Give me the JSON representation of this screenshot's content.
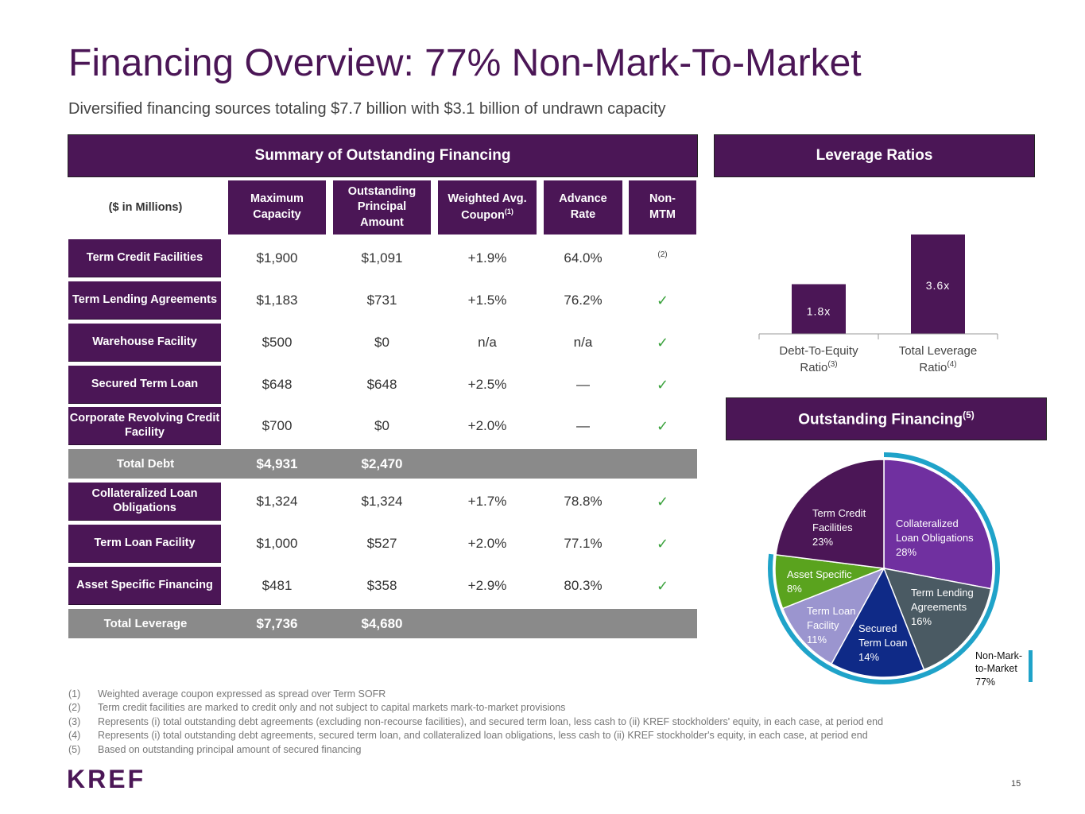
{
  "title": "Financing Overview: 77% Non-Mark-To-Market",
  "subtitle": "Diversified financing sources totaling $7.7 billion with $3.1 billion of undrawn capacity",
  "summary": {
    "banner": "Summary of Outstanding Financing",
    "unit_label": "($ in Millions)",
    "columns": [
      "Maximum Capacity",
      "Outstanding Principal Amount",
      "Weighted Avg. Coupon",
      "Advance Rate",
      "Non-MTM"
    ],
    "coupon_sup": "(1)",
    "rows": [
      {
        "label": "Term Credit Facilities",
        "max": "$1,900",
        "outstanding": "$1,091",
        "coupon": "+1.9%",
        "advance": "64.0%",
        "nonmtm": "(2)"
      },
      {
        "label": "Term Lending Agreements",
        "max": "$1,183",
        "outstanding": "$731",
        "coupon": "+1.5%",
        "advance": "76.2%",
        "nonmtm": "✓"
      },
      {
        "label": "Warehouse Facility",
        "max": "$500",
        "outstanding": "$0",
        "coupon": "n/a",
        "advance": "n/a",
        "nonmtm": "✓"
      },
      {
        "label": "Secured Term Loan",
        "max": "$648",
        "outstanding": "$648",
        "coupon": "+2.5%",
        "advance": "—",
        "nonmtm": "✓"
      },
      {
        "label": "Corporate Revolving Credit Facility",
        "max": "$700",
        "outstanding": "$0",
        "coupon": "+2.0%",
        "advance": "—",
        "nonmtm": "✓"
      }
    ],
    "total_debt": {
      "label": "Total Debt",
      "max": "$4,931",
      "outstanding": "$2,470"
    },
    "rows2": [
      {
        "label": "Collateralized Loan Obligations",
        "max": "$1,324",
        "outstanding": "$1,324",
        "coupon": "+1.7%",
        "advance": "78.8%",
        "nonmtm": "✓"
      },
      {
        "label": "Term Loan Facility",
        "max": "$1,000",
        "outstanding": "$527",
        "coupon": "+2.0%",
        "advance": "77.1%",
        "nonmtm": "✓"
      },
      {
        "label": "Asset Specific Financing",
        "max": "$481",
        "outstanding": "$358",
        "coupon": "+2.9%",
        "advance": "80.3%",
        "nonmtm": "✓"
      }
    ],
    "total_leverage": {
      "label": "Total Leverage",
      "max": "$7,736",
      "outstanding": "$4,680"
    }
  },
  "leverage": {
    "banner": "Leverage Ratios",
    "cat1_line1": "Debt-To-Equity",
    "cat1_line2": "Ratio",
    "cat1_sup": "(3)",
    "cat2_line1": "Total Leverage",
    "cat2_line2": "Ratio",
    "cat2_sup": "(4)"
  },
  "outstanding": {
    "banner": "Outstanding Financing",
    "banner_sup": "(5)",
    "nonmtm_line1": "Non-Mark-",
    "nonmtm_line2": "to-Market",
    "nonmtm_line3": "77%"
  },
  "chart_data": [
    {
      "type": "bar",
      "categories": [
        "Debt-To-Equity Ratio(3)",
        "Total Leverage Ratio(4)"
      ],
      "values": [
        1.8,
        3.6
      ],
      "value_labels": [
        "1.8x",
        "3.6x"
      ],
      "ylim": [
        0,
        3.6
      ],
      "colors": [
        "#4b1656",
        "#4b1656"
      ]
    },
    {
      "type": "pie",
      "slices": [
        {
          "name": "Collateralized Loan Obligations",
          "value": 28,
          "label_lines": [
            "Collateralized",
            "Loan Obligations",
            "28%"
          ],
          "color": "#7030a0"
        },
        {
          "name": "Term Lending Agreements",
          "value": 16,
          "label_lines": [
            "Term Lending",
            "Agreements",
            "16%"
          ],
          "color": "#4a5a63"
        },
        {
          "name": "Secured Term Loan",
          "value": 14,
          "label_lines": [
            "Secured",
            "Term Loan",
            "14%"
          ],
          "color": "#0f2a87"
        },
        {
          "name": "Term Loan Facility",
          "value": 11,
          "label_lines": [
            "Term Loan",
            "Facility",
            "11%"
          ],
          "color": "#9b95cf"
        },
        {
          "name": "Asset Specific",
          "value": 8,
          "label_lines": [
            "Asset Specific",
            "8%"
          ],
          "color": "#5aa31e"
        },
        {
          "name": "Term Credit Facilities",
          "value": 23,
          "label_lines": [
            "Term Credit",
            "Facilities",
            "23%"
          ],
          "color": "#4b1656"
        }
      ]
    }
  ],
  "footnotes": [
    {
      "num": "(1)",
      "text": "Weighted average coupon expressed as spread over Term SOFR"
    },
    {
      "num": "(2)",
      "text": "Term credit facilities are marked to credit only and not subject to capital markets mark-to-market provisions"
    },
    {
      "num": "(3)",
      "text": "Represents (i) total outstanding debt agreements (excluding non-recourse facilities), and secured term loan, less cash to (ii) KREF stockholders' equity, in each case, at period end"
    },
    {
      "num": "(4)",
      "text": "Represents (i) total outstanding debt agreements, secured term loan, and collateralized loan obligations, less cash to (ii) KREF stockholder's equity, in each case, at period end"
    },
    {
      "num": "(5)",
      "text": "Based on outstanding principal amount of secured financing"
    }
  ],
  "logo": "KREF",
  "page_number": "15"
}
